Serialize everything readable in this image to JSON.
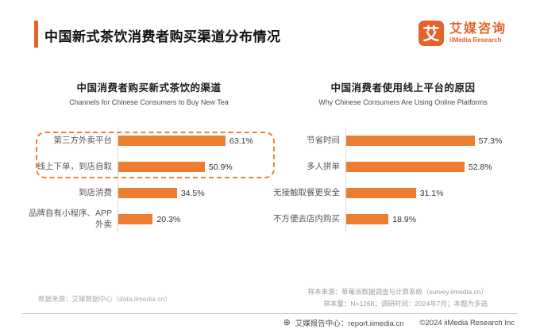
{
  "header": {
    "title": "中国新式茶饮消费者购买渠道分布情况",
    "logo": {
      "mark": "艾",
      "name_zh": "艾媒咨询",
      "name_en": "iiMedia Research"
    }
  },
  "chart_data": [
    {
      "type": "bar",
      "orientation": "horizontal",
      "title": "中国消费者购买新式茶饮的渠道",
      "subtitle": "Channels for Chinese Consumers to Buy New Tea",
      "categories": [
        "第三方外卖平台",
        "线上下单，到店自取",
        "到店消费",
        "品牌自有小程序、APP外卖"
      ],
      "values": [
        63.1,
        50.9,
        34.5,
        20.3
      ],
      "value_labels": [
        "63.1%",
        "50.9%",
        "34.5%",
        "20.3%"
      ],
      "xlim": [
        0,
        70
      ],
      "grid": false,
      "bar_color": "#ED7D31",
      "highlight_box_rows": [
        0,
        1
      ],
      "highlight_box_color": "#ED7D31"
    },
    {
      "type": "bar",
      "orientation": "horizontal",
      "title": "中国消费者使用线上平台的原因",
      "subtitle": "Why Chinese Consumers Are Using Online Platforms",
      "categories": [
        "节省时间",
        "多人拼单",
        "无接触取餐更安全",
        "不方便去店内购买"
      ],
      "values": [
        57.3,
        52.8,
        31.1,
        18.9
      ],
      "value_labels": [
        "57.3%",
        "52.8%",
        "31.1%",
        "18.9%"
      ],
      "xlim": [
        0,
        62
      ],
      "grid": false,
      "bar_color": "#ED7D31"
    }
  ],
  "notes": {
    "data_source": "数据来源：艾媒数据中心（data.iimedia.cn）",
    "sample_source": "样本来源：草莓派数据调查与计算系统（survey.iimedia.cn）",
    "sample_info": "样本量：N=1268；调研时间：2024年7月；本题为多选"
  },
  "footer": {
    "globe_icon": "⊕",
    "report_center": "艾媒报告中心：report.iimedia.cn",
    "copyright": "©2024 iiMedia Research Inc"
  },
  "colors": {
    "accent_orange": "#E4632B",
    "bar_orange": "#ED7D31"
  }
}
